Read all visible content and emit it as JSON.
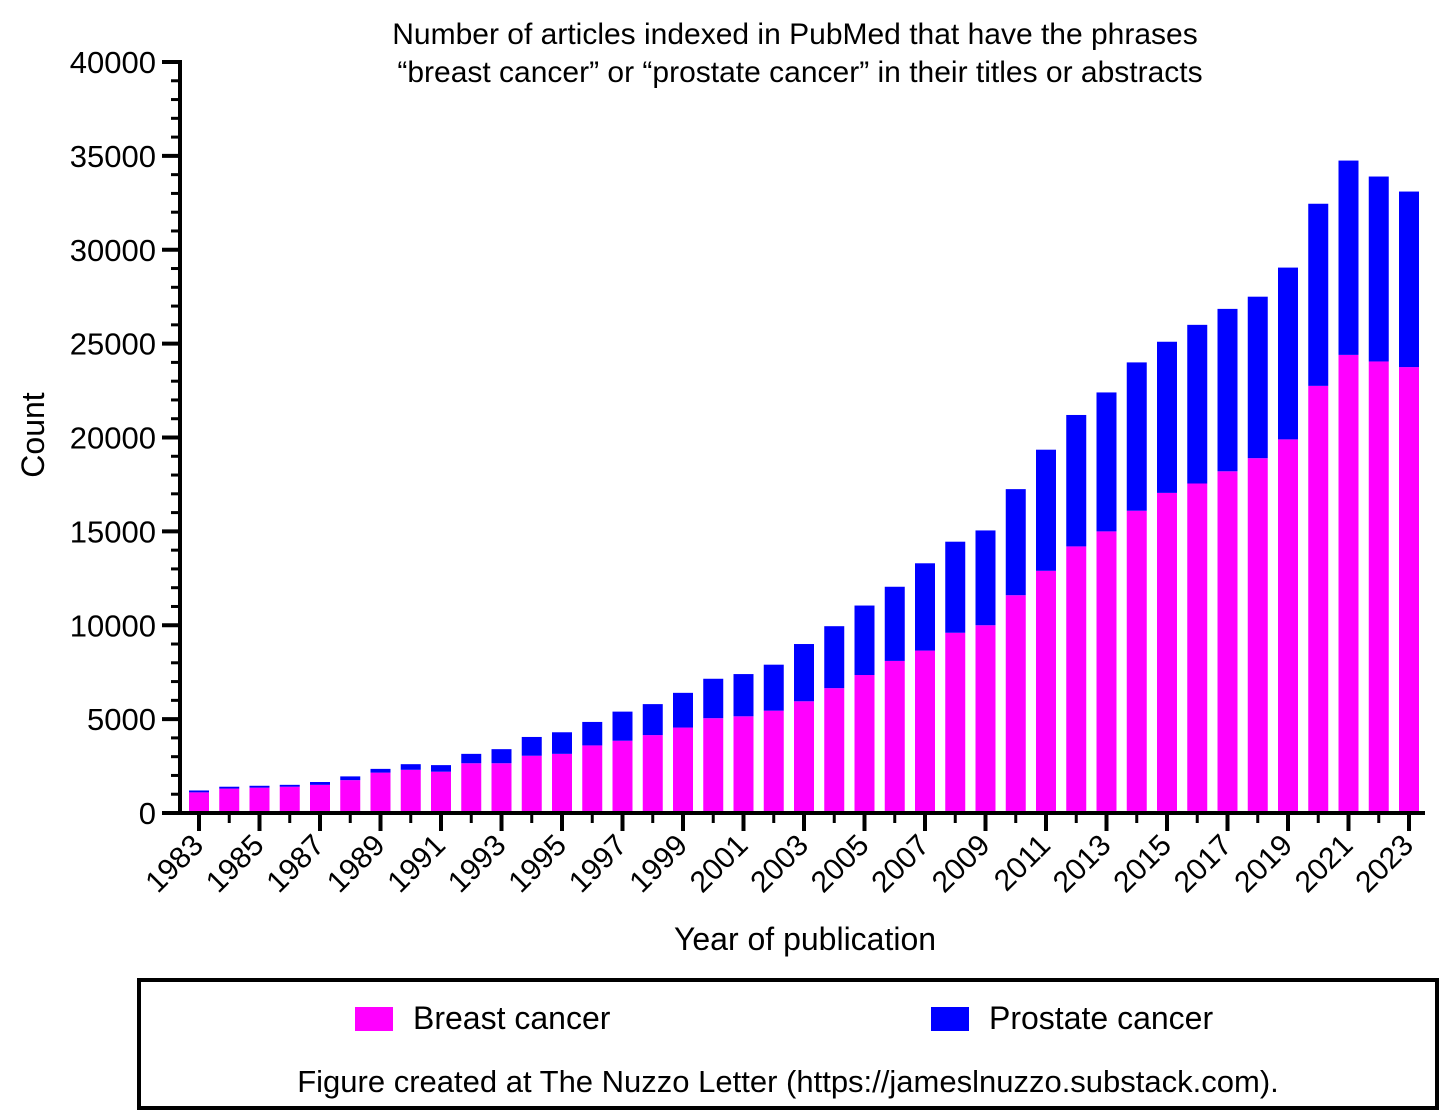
{
  "chart_data": {
    "type": "bar",
    "stacked": true,
    "title": [
      "Number of articles indexed in PubMed that have the phrases",
      "“breast cancer” or “prostate cancer” in their titles or abstracts"
    ],
    "xlabel": "Year of publication",
    "ylabel": "Count",
    "ylim": [
      0,
      40000
    ],
    "yticks": [
      "0",
      "5000",
      "10000",
      "15000",
      "20000",
      "25000",
      "30000",
      "35000",
      "40000"
    ],
    "xtick_labels": [
      "1983",
      "1985",
      "1987",
      "1989",
      "1991",
      "1993",
      "1995",
      "1997",
      "1999",
      "2001",
      "2003",
      "2005",
      "2007",
      "2009",
      "2011",
      "2013",
      "2015",
      "2017",
      "2019",
      "2021",
      "2023"
    ],
    "grid": false,
    "legend_position": "bottom",
    "categories": [
      "1983",
      "1984",
      "1985",
      "1986",
      "1987",
      "1988",
      "1989",
      "1990",
      "1991",
      "1992",
      "1993",
      "1994",
      "1995",
      "1996",
      "1997",
      "1998",
      "1999",
      "2000",
      "2001",
      "2002",
      "2003",
      "2004",
      "2005",
      "2006",
      "2007",
      "2008",
      "2009",
      "2010",
      "2011",
      "2012",
      "2013",
      "2014",
      "2015",
      "2016",
      "2017",
      "2018",
      "2019",
      "2020",
      "2021",
      "2022",
      "2023"
    ],
    "series": [
      {
        "name": "Breast cancer",
        "color": "#ff00ff",
        "values": [
          1100,
          1300,
          1350,
          1400,
          1500,
          1750,
          2150,
          2300,
          2200,
          2650,
          2650,
          3050,
          3150,
          3600,
          3850,
          4150,
          4550,
          5050,
          5150,
          5450,
          5950,
          6650,
          7350,
          8100,
          8650,
          9600,
          10000,
          11600,
          12900,
          14200,
          15000,
          16100,
          17050,
          17550,
          18200,
          18900,
          19900,
          22750,
          24400,
          24050,
          23750
        ]
      },
      {
        "name": "Prostate cancer",
        "color": "#0000ff",
        "values": [
          100,
          100,
          100,
          100,
          150,
          200,
          200,
          300,
          350,
          500,
          750,
          1000,
          1150,
          1250,
          1550,
          1650,
          1850,
          2100,
          2250,
          2450,
          3050,
          3300,
          3700,
          3950,
          4650,
          4850,
          5050,
          5650,
          6450,
          7000,
          7400,
          7900,
          8050,
          8450,
          8650,
          8600,
          9150,
          9700,
          10350,
          9850,
          9350
        ]
      }
    ]
  },
  "legend": {
    "items": [
      {
        "label": "Breast cancer",
        "color": "#ff00ff"
      },
      {
        "label": "Prostate cancer",
        "color": "#0000ff"
      }
    ],
    "credit": "Figure created at The Nuzzo Letter (https://jameslnuzzo.substack.com)."
  }
}
